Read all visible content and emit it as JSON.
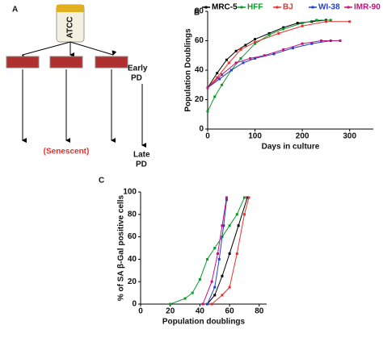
{
  "diagram": {
    "label": "A",
    "bottle": "ATCC",
    "early": [
      "Early",
      "PD"
    ],
    "senescent": "(Senescent)",
    "late": [
      "Late",
      "PD"
    ]
  },
  "chart_data": [
    {
      "type": "line",
      "label": "B",
      "ylabel": "Population Doublings",
      "xlabel": "Days in culture",
      "xlim": [
        0,
        350
      ],
      "xticks": [
        0,
        100,
        200,
        300
      ],
      "ylim": [
        0,
        80
      ],
      "yticks": [
        0,
        20,
        40,
        60,
        80
      ],
      "series": [
        {
          "name": "MRC-5",
          "color": "#000000",
          "x": [
            0,
            20,
            40,
            60,
            80,
            100,
            130,
            160,
            190,
            220,
            250
          ],
          "values": [
            28,
            38,
            47,
            53,
            57,
            61,
            65,
            69,
            72,
            73,
            74
          ]
        },
        {
          "name": "HFF",
          "color": "#0a9a2a",
          "x": [
            0,
            15,
            30,
            50,
            70,
            100,
            130,
            160,
            200,
            230,
            260
          ],
          "values": [
            12,
            22,
            30,
            40,
            48,
            58,
            64,
            68,
            72,
            74,
            74
          ]
        },
        {
          "name": "BJ",
          "color": "#e8302a",
          "x": [
            0,
            20,
            45,
            70,
            100,
            150,
            200,
            250,
            300
          ],
          "values": [
            28,
            35,
            45,
            54,
            59,
            65,
            70,
            73,
            73
          ]
        },
        {
          "name": "WI-38",
          "color": "#1f3fd0",
          "x": [
            0,
            25,
            50,
            75,
            100,
            140,
            180,
            220,
            260
          ],
          "values": [
            28,
            34,
            40,
            45,
            48,
            51,
            55,
            58,
            60
          ]
        },
        {
          "name": "IMR-90",
          "color": "#c0147a",
          "x": [
            0,
            30,
            60,
            90,
            120,
            160,
            200,
            240,
            280
          ],
          "values": [
            28,
            37,
            45,
            48,
            50,
            54,
            58,
            60,
            60
          ]
        }
      ]
    },
    {
      "type": "line",
      "label": "C",
      "ylabel": "% of SA β-Gal positive cells",
      "xlabel": "Population doublings",
      "xlim": [
        0,
        85
      ],
      "xticks": [
        0,
        20,
        40,
        60,
        80
      ],
      "ylim": [
        0,
        100
      ],
      "yticks": [
        0,
        20,
        40,
        60,
        80,
        100
      ],
      "series": [
        {
          "name": "MRC-5",
          "color": "#000000",
          "x": [
            45,
            50,
            55,
            60,
            66,
            72
          ],
          "values": [
            0,
            8,
            25,
            45,
            70,
            95
          ]
        },
        {
          "name": "HFF",
          "color": "#0a9a2a",
          "x": [
            20,
            30,
            35,
            40,
            45,
            50,
            55,
            60,
            65,
            70
          ],
          "values": [
            0,
            5,
            10,
            22,
            40,
            50,
            60,
            70,
            80,
            95
          ]
        },
        {
          "name": "BJ",
          "color": "#e8302a",
          "x": [
            48,
            55,
            60,
            65,
            70,
            73
          ],
          "values": [
            0,
            8,
            15,
            45,
            80,
            95
          ]
        },
        {
          "name": "WI-38",
          "color": "#1f3fd0",
          "x": [
            45,
            50,
            53,
            56,
            58
          ],
          "values": [
            0,
            15,
            40,
            70,
            93
          ]
        },
        {
          "name": "IMR-90",
          "color": "#c0147a",
          "x": [
            42,
            48,
            52,
            55,
            58
          ],
          "values": [
            0,
            20,
            45,
            70,
            95
          ]
        }
      ]
    }
  ]
}
